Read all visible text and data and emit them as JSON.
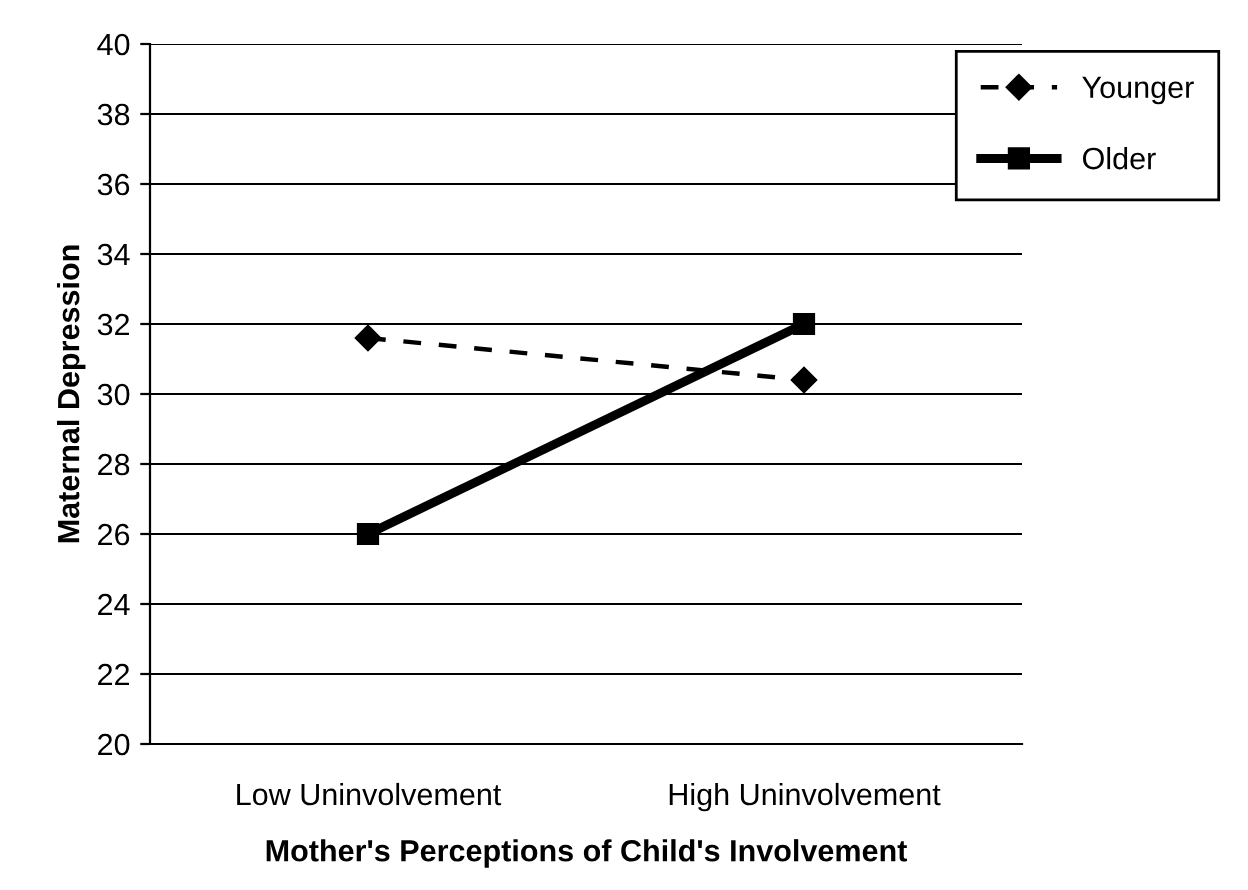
{
  "chart_data": {
    "type": "line",
    "xlabel": "Mother's Perceptions of Child's Involvement",
    "ylabel": "Maternal Depression",
    "categories": [
      "Low Uninvolvement",
      "High Uninvolvement"
    ],
    "series": [
      {
        "name": "Younger",
        "color": "#000000",
        "values": [
          31.6,
          30.4
        ],
        "marker": "diamond",
        "line_style": "dashed"
      },
      {
        "name": "Older",
        "color": "#000000",
        "values": [
          26,
          32
        ],
        "marker": "square",
        "line_style": "solid"
      }
    ],
    "ylim": [
      20,
      40
    ],
    "yticks": [
      20,
      22,
      24,
      26,
      28,
      30,
      32,
      34,
      36,
      38,
      40
    ],
    "grid": "y",
    "legend": "top right"
  }
}
